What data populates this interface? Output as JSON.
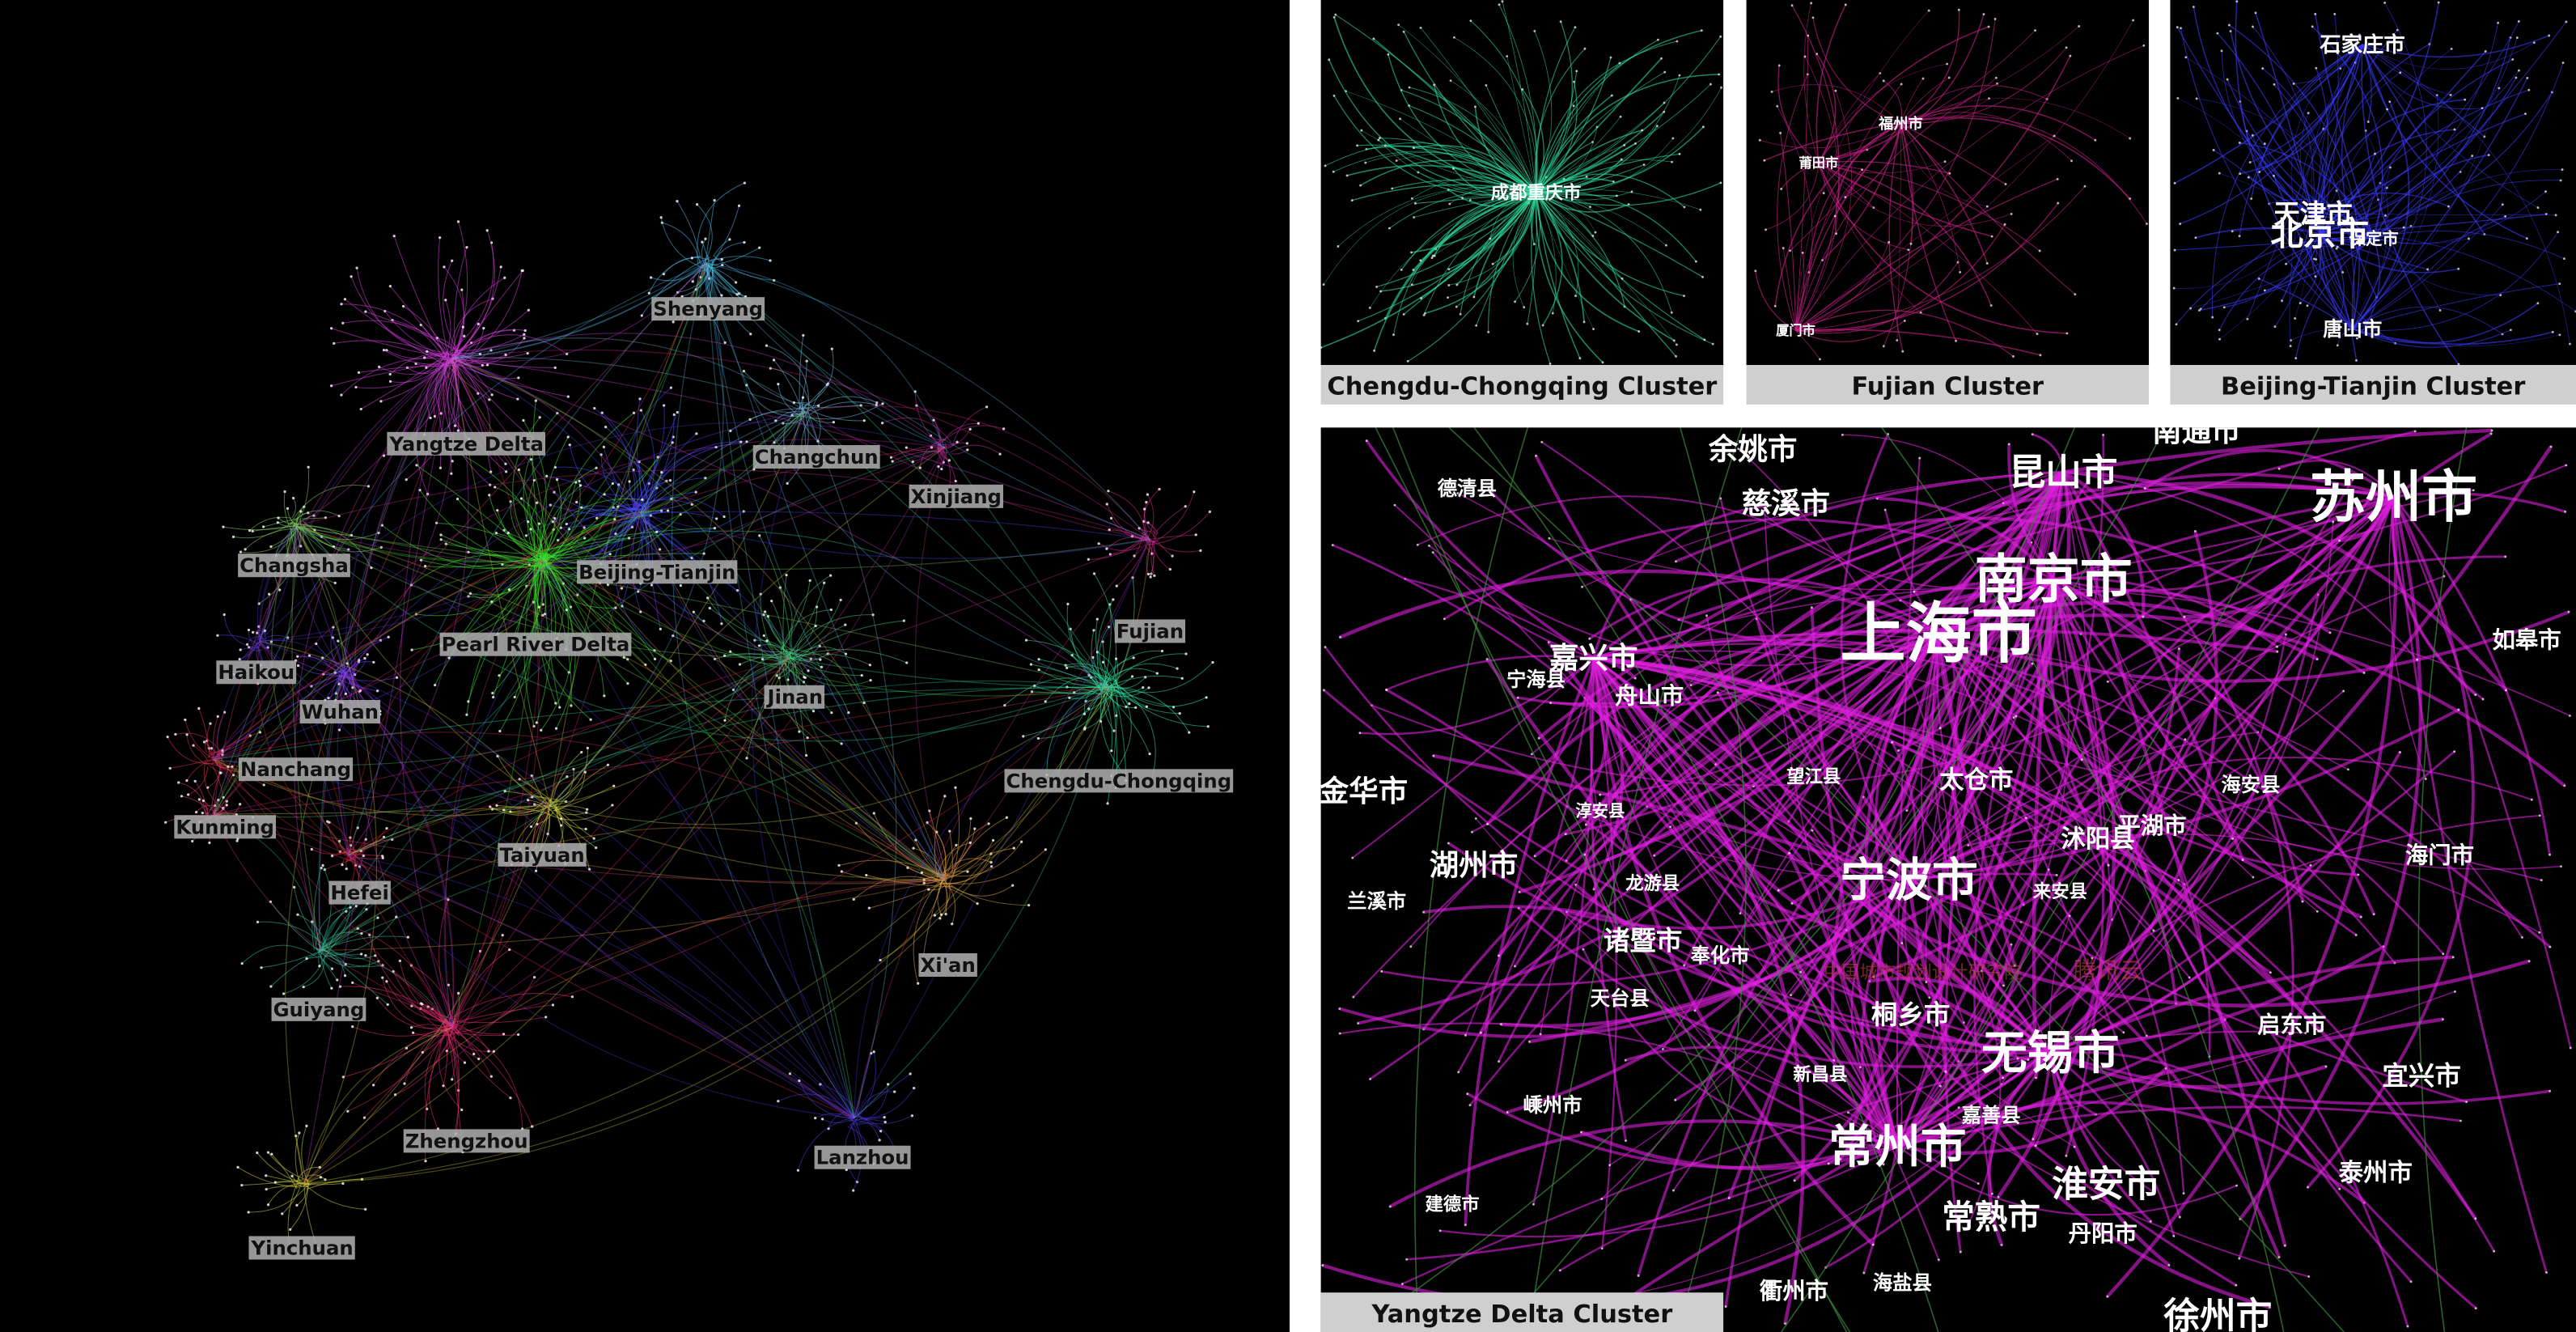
{
  "main_panel": {
    "clusters": [
      {
        "label": "Shenyang",
        "color": "#4fb8e8"
      },
      {
        "label": "Yangtze Delta",
        "color": "#d93ee0"
      },
      {
        "label": "Changchun",
        "color": "#6fb6d8"
      },
      {
        "label": "Xinjiang",
        "color": "#c02a9a"
      },
      {
        "label": "Changsha",
        "color": "#7fd060"
      },
      {
        "label": "Beijing-Tianjin",
        "color": "#4a4aff"
      },
      {
        "label": "Pearl River Delta",
        "color": "#3fe030"
      },
      {
        "label": "Fujian",
        "color": "#d02a8a"
      },
      {
        "label": "Haikou",
        "color": "#5a3ad8"
      },
      {
        "label": "Wuhan",
        "color": "#7a3af0"
      },
      {
        "label": "Jinan",
        "color": "#4ac07a"
      },
      {
        "label": "Nanchang",
        "color": "#e03050"
      },
      {
        "label": "Chengdu-Chongqing",
        "color": "#30e0a0"
      },
      {
        "label": "Kunming",
        "color": "#e04080"
      },
      {
        "label": "Taiyuan",
        "color": "#d0d040"
      },
      {
        "label": "Hefei",
        "color": "#e02a40"
      },
      {
        "label": "Xi'an",
        "color": "#e0a040"
      },
      {
        "label": "Guiyang",
        "color": "#30c0a0"
      },
      {
        "label": "Zhengzhou",
        "color": "#e02a70"
      },
      {
        "label": "Lanzhou",
        "color": "#4a3ae0"
      },
      {
        "label": "Yinchuan",
        "color": "#d0d040"
      }
    ]
  },
  "insets": [
    {
      "caption": "Chengdu-Chongqing Cluster",
      "color": "#2fe0a0",
      "cities": [
        "成都重庆市"
      ]
    },
    {
      "caption": "Fujian Cluster",
      "color": "#d0208a",
      "cities": [
        "福州市",
        "莆田市",
        "厦门市"
      ]
    },
    {
      "caption": "Beijing-Tianjin Cluster",
      "color": "#3a3aff",
      "cities": [
        "石家庄市",
        "天津市",
        "北京市",
        "保定市",
        "唐山市"
      ]
    },
    {
      "caption": "Yangtze Delta Cluster",
      "color": "#e020e0",
      "cities": [
        "上海市",
        "南京市",
        "苏州市",
        "宁波市",
        "无锡市",
        "常州市",
        "昆山市",
        "嘉兴市",
        "湖州市",
        "余姚市",
        "慈溪市",
        "诸暨市",
        "桐乡市",
        "淮安市",
        "常熟市",
        "太仓市",
        "宜兴市",
        "泰州市",
        "海门市",
        "启东市",
        "如皋市",
        "海安县",
        "德清县",
        "宁海县",
        "舟山市",
        "兰溪市",
        "嵊州市",
        "建德市",
        "衢州市",
        "海盐县",
        "徐州市",
        "丹阳市",
        "嘉善县",
        "新昌县",
        "天台县",
        "奉化市",
        "龙游县",
        "淳安县",
        "望江县",
        "平湖市",
        "沭阳县",
        "来安县",
        "金华市",
        "南通市"
      ],
      "watermarks": [
        "中国城市规划设计研究院",
        "腾讯云"
      ]
    }
  ]
}
